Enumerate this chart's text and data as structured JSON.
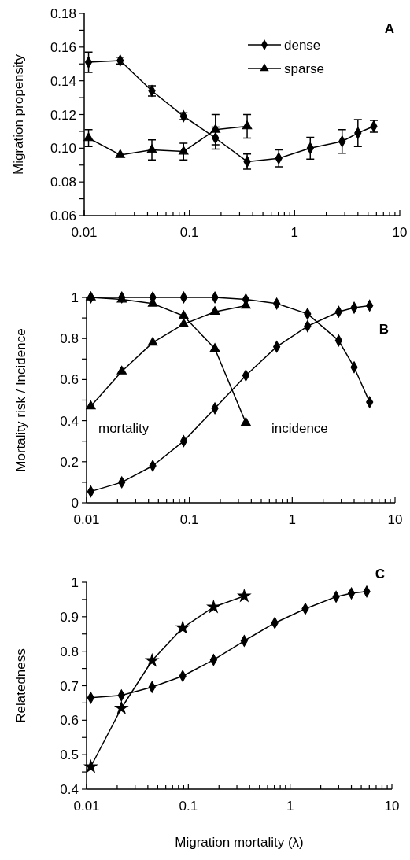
{
  "chart_data": [
    {
      "type": "line",
      "title": "A",
      "ylabel": "Migration propensity",
      "legend": "top right",
      "line_style": "solid",
      "x": [
        0.011,
        0.022,
        0.044,
        0.088,
        0.177,
        0.354,
        0.707,
        1.41,
        2.83,
        4,
        5.66
      ],
      "xlim": [
        0.01,
        10
      ],
      "log": "x",
      "xticks": [
        0.01,
        {
          "value": 0.02,
          "label": null
        },
        {
          "value": 0.03,
          "label": null
        },
        {
          "value": 0.04,
          "label": null
        },
        {
          "value": 0.05,
          "label": null
        },
        {
          "value": 0.06,
          "label": null
        },
        {
          "value": 0.07,
          "label": null
        },
        {
          "value": 0.08,
          "label": null
        },
        {
          "value": 0.09,
          "label": null
        },
        0.1,
        {
          "value": 0.2,
          "label": null
        },
        {
          "value": 0.3,
          "label": null
        },
        {
          "value": 0.4,
          "label": null
        },
        {
          "value": 0.5,
          "label": null
        },
        {
          "value": 0.6,
          "label": null
        },
        {
          "value": 0.7,
          "label": null
        },
        {
          "value": 0.8,
          "label": null
        },
        {
          "value": 0.9,
          "label": null
        },
        1,
        {
          "value": 2,
          "label": null
        },
        {
          "value": 3,
          "label": null
        },
        {
          "value": 4,
          "label": null
        },
        {
          "value": 5,
          "label": null
        },
        {
          "value": 6,
          "label": null
        },
        {
          "value": 7,
          "label": null
        },
        {
          "value": 8,
          "label": null
        },
        {
          "value": 9,
          "label": null
        },
        10
      ],
      "ylim": [
        0.06,
        0.18
      ],
      "yticks": [
        0.06,
        {
          "value": 0.07,
          "label": null
        },
        0.08,
        {
          "value": 0.09,
          "label": null
        },
        {
          "value": 0.1,
          "label": "0.10"
        },
        {
          "value": 0.11,
          "label": null
        },
        0.12,
        {
          "value": 0.13,
          "label": null
        },
        0.14,
        {
          "value": 0.15,
          "label": null
        },
        0.16,
        {
          "value": 0.17,
          "label": null
        },
        0.18
      ],
      "series": [
        {
          "name": "dense",
          "color": "#000000",
          "marker": "diamond",
          "values": [
            0.151,
            0.152,
            0.134,
            0.119,
            0.106,
            0.092,
            0.094,
            0.1,
            0.104,
            0.109,
            0.113
          ],
          "errors": [
            0.006,
            0.002,
            0.003,
            0.002,
            0.0065,
            0.0045,
            0.005,
            0.0065,
            0.007,
            0.008,
            0.0035
          ]
        },
        {
          "name": "sparse",
          "color": "#000000",
          "marker": "triangle",
          "x": [
            0.011,
            0.022,
            0.044,
            0.088,
            0.177,
            0.354
          ],
          "values": [
            0.106,
            0.096,
            0.099,
            0.098,
            0.111,
            0.113
          ],
          "errors": [
            0.005,
            0.001,
            0.006,
            0.005,
            0.009,
            0.007
          ]
        }
      ]
    },
    {
      "type": "line",
      "title": "B",
      "ylabel": "Mortality risk / Incidence",
      "legend": false,
      "line_style": "solid",
      "annotations": [
        "mortality",
        "incidence"
      ],
      "x": [
        0.011,
        0.022,
        0.044,
        0.088,
        0.177,
        0.354,
        0.707,
        1.41,
        2.83,
        4,
        5.66
      ],
      "xlim": [
        0.01,
        10
      ],
      "log": "x",
      "xticks": [
        0.01,
        {
          "value": 0.02,
          "label": null
        },
        {
          "value": 0.03,
          "label": null
        },
        {
          "value": 0.04,
          "label": null
        },
        {
          "value": 0.05,
          "label": null
        },
        {
          "value": 0.06,
          "label": null
        },
        {
          "value": 0.07,
          "label": null
        },
        {
          "value": 0.08,
          "label": null
        },
        {
          "value": 0.09,
          "label": null
        },
        0.1,
        {
          "value": 0.2,
          "label": null
        },
        {
          "value": 0.3,
          "label": null
        },
        {
          "value": 0.4,
          "label": null
        },
        {
          "value": 0.5,
          "label": null
        },
        {
          "value": 0.6,
          "label": null
        },
        {
          "value": 0.7,
          "label": null
        },
        {
          "value": 0.8,
          "label": null
        },
        {
          "value": 0.9,
          "label": null
        },
        1,
        {
          "value": 2,
          "label": null
        },
        {
          "value": 3,
          "label": null
        },
        {
          "value": 4,
          "label": null
        },
        {
          "value": 5,
          "label": null
        },
        {
          "value": 6,
          "label": null
        },
        {
          "value": 7,
          "label": null
        },
        {
          "value": 8,
          "label": null
        },
        {
          "value": 9,
          "label": null
        },
        10
      ],
      "ylim": [
        0,
        1
      ],
      "yticks": [
        0,
        {
          "value": 0.1,
          "label": null
        },
        0.2,
        {
          "value": 0.3,
          "label": null
        },
        0.4,
        {
          "value": 0.5,
          "label": null
        },
        0.6,
        {
          "value": 0.7,
          "label": null
        },
        0.8,
        {
          "value": 0.9,
          "label": null
        },
        1
      ],
      "series": [
        {
          "color": "#000000",
          "marker": "diamond",
          "values": [
            1,
            1,
            1,
            1,
            1,
            0.99,
            0.97,
            0.92,
            0.79,
            0.66,
            0.49
          ]
        },
        {
          "color": "#000000",
          "marker": "triangle",
          "x": [
            0.011,
            0.022,
            0.044,
            0.088,
            0.177,
            0.354
          ],
          "values": [
            1,
            0.99,
            0.97,
            0.91,
            0.75,
            0.39
          ]
        },
        {
          "color": "#000000",
          "marker": "triangle",
          "x": [
            0.011,
            0.022,
            0.044,
            0.088,
            0.177,
            0.354
          ],
          "values": [
            0.47,
            0.64,
            0.78,
            0.87,
            0.93,
            0.96
          ]
        },
        {
          "color": "#000000",
          "marker": "diamond",
          "values": [
            0.055,
            0.1,
            0.18,
            0.3,
            0.46,
            0.62,
            0.76,
            0.86,
            0.93,
            0.95,
            0.96
          ]
        }
      ]
    },
    {
      "type": "line",
      "title": "C",
      "ylabel": "Relatedness",
      "xlabel": "Migration mortality (λ)",
      "legend": false,
      "line_style": "solid",
      "x": [
        0.011,
        0.022,
        0.044,
        0.088,
        0.177,
        0.354,
        0.707,
        1.41,
        2.83,
        4,
        5.66
      ],
      "xlim": [
        0.01,
        10
      ],
      "log": "x",
      "xticks": [
        0.01,
        {
          "value": 0.02,
          "label": null
        },
        {
          "value": 0.03,
          "label": null
        },
        {
          "value": 0.04,
          "label": null
        },
        {
          "value": 0.05,
          "label": null
        },
        {
          "value": 0.06,
          "label": null
        },
        {
          "value": 0.07,
          "label": null
        },
        {
          "value": 0.08,
          "label": null
        },
        {
          "value": 0.09,
          "label": null
        },
        0.1,
        {
          "value": 0.2,
          "label": null
        },
        {
          "value": 0.3,
          "label": null
        },
        {
          "value": 0.4,
          "label": null
        },
        {
          "value": 0.5,
          "label": null
        },
        {
          "value": 0.6,
          "label": null
        },
        {
          "value": 0.7,
          "label": null
        },
        {
          "value": 0.8,
          "label": null
        },
        {
          "value": 0.9,
          "label": null
        },
        1,
        {
          "value": 2,
          "label": null
        },
        {
          "value": 3,
          "label": null
        },
        {
          "value": 4,
          "label": null
        },
        {
          "value": 5,
          "label": null
        },
        {
          "value": 6,
          "label": null
        },
        {
          "value": 7,
          "label": null
        },
        {
          "value": 8,
          "label": null
        },
        {
          "value": 9,
          "label": null
        },
        10
      ],
      "ylim": [
        0.4,
        1
      ],
      "yticks": [
        0.4,
        {
          "value": 0.45,
          "label": null
        },
        0.5,
        {
          "value": 0.55,
          "label": null
        },
        0.6,
        {
          "value": 0.65,
          "label": null
        },
        0.7,
        {
          "value": 0.75,
          "label": null
        },
        0.8,
        {
          "value": 0.85,
          "label": null
        },
        0.9,
        {
          "value": 0.95,
          "label": null
        },
        1
      ],
      "series": [
        {
          "color": "#000000",
          "marker": "diamond",
          "values": [
            0.665,
            0.672,
            0.696,
            0.728,
            0.775,
            0.83,
            0.882,
            0.923,
            0.958,
            0.968,
            0.973
          ]
        },
        {
          "color": "#000000",
          "marker": "star",
          "x": [
            0.011,
            0.022,
            0.044,
            0.088,
            0.177,
            0.354
          ],
          "values": [
            0.465,
            0.635,
            0.773,
            0.868,
            0.928,
            0.96
          ]
        }
      ]
    }
  ]
}
